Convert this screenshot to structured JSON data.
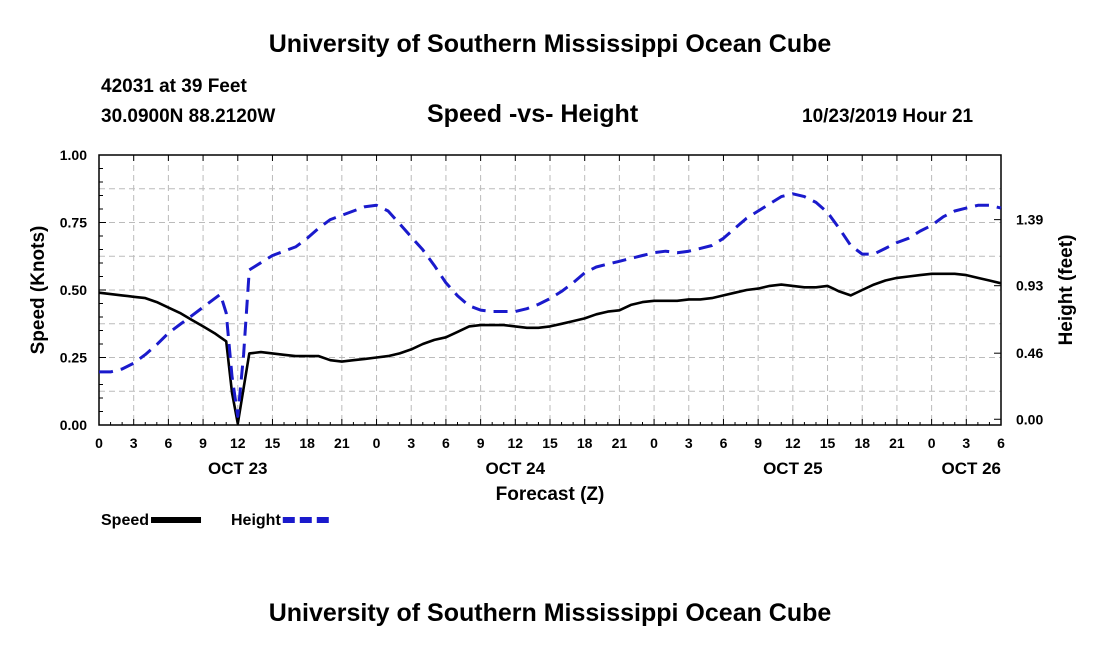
{
  "header": {
    "title": "University of Southern Mississippi Ocean Cube",
    "station": "42031 at 39 Feet",
    "coordinates": "30.0900N 88.2120W",
    "chart_title": "Speed -vs- Height",
    "datetime": "10/23/2019 Hour 21"
  },
  "footer": {
    "title": "University of Southern Mississippi Ocean Cube"
  },
  "colors": {
    "speed": "#000000",
    "height": "#1a1acc",
    "grid": "#bbbbbb"
  },
  "chart_data": {
    "type": "line",
    "xlabel": "Forecast (Z)",
    "ylabel": "Speed (Knots)",
    "y2label": "Height (feet)",
    "x_unit": "hours from Oct 23 00Z",
    "xlim": [
      0,
      78
    ],
    "ylim": [
      0,
      1.0
    ],
    "y2lim": [
      -0.04,
      1.84
    ],
    "x_ticks": [
      0,
      3,
      6,
      9,
      12,
      15,
      18,
      21,
      24,
      27,
      30,
      33,
      36,
      39,
      42,
      45,
      48,
      51,
      54,
      57,
      60,
      63,
      66,
      69,
      72,
      75,
      78
    ],
    "x_tick_labels": [
      "0",
      "3",
      "6",
      "9",
      "12",
      "15",
      "18",
      "21",
      "0",
      "3",
      "6",
      "9",
      "12",
      "15",
      "18",
      "21",
      "0",
      "3",
      "6",
      "9",
      "12",
      "15",
      "18",
      "21",
      "0",
      "3",
      "6"
    ],
    "date_labels": [
      {
        "x": 12,
        "label": "OCT 23"
      },
      {
        "x": 36,
        "label": "OCT 24"
      },
      {
        "x": 60,
        "label": "OCT 25"
      },
      {
        "x": 78,
        "label": "OCT 26"
      }
    ],
    "y_ticks": [
      0.0,
      0.25,
      0.5,
      0.75,
      1.0
    ],
    "y_tick_labels": [
      "0.00",
      "0.25",
      "0.50",
      "0.75",
      "1.00"
    ],
    "y2_ticks": [
      0.0,
      0.46,
      0.93,
      1.39
    ],
    "y2_tick_labels": [
      "0.00",
      "0.46",
      "0.93",
      "1.39"
    ],
    "grid": true,
    "legend": {
      "position": "bottom-left"
    },
    "series": [
      {
        "name": "Speed",
        "axis": "left",
        "style": "solid",
        "x": [
          0,
          1,
          2,
          3,
          4,
          5,
          6,
          7,
          8,
          9,
          10,
          10.5,
          11,
          11.5,
          12,
          13,
          14,
          15,
          16,
          17,
          18,
          19,
          20,
          21,
          22,
          23,
          24,
          25,
          26,
          27,
          28,
          29,
          30,
          31,
          32,
          33,
          34,
          35,
          36,
          37,
          38,
          39,
          40,
          41,
          42,
          43,
          44,
          45,
          46,
          47,
          48,
          49,
          50,
          51,
          52,
          53,
          54,
          55,
          56,
          57,
          58,
          59,
          60,
          61,
          62,
          63,
          63.5,
          64,
          65,
          66,
          67,
          68,
          69,
          70,
          71,
          72,
          73,
          74,
          75,
          76,
          77,
          78
        ],
        "values": [
          0.49,
          0.485,
          0.48,
          0.475,
          0.47,
          0.455,
          0.435,
          0.415,
          0.39,
          0.365,
          0.34,
          0.325,
          0.31,
          0.12,
          0.005,
          0.265,
          0.27,
          0.265,
          0.26,
          0.255,
          0.255,
          0.255,
          0.24,
          0.235,
          0.24,
          0.245,
          0.25,
          0.255,
          0.265,
          0.28,
          0.3,
          0.315,
          0.325,
          0.345,
          0.365,
          0.37,
          0.37,
          0.37,
          0.365,
          0.36,
          0.36,
          0.365,
          0.375,
          0.385,
          0.395,
          0.41,
          0.42,
          0.425,
          0.445,
          0.455,
          0.46,
          0.46,
          0.46,
          0.465,
          0.465,
          0.47,
          0.48,
          0.49,
          0.5,
          0.505,
          0.515,
          0.52,
          0.515,
          0.51,
          0.51,
          0.515,
          0.505,
          0.495,
          0.48,
          0.5,
          0.52,
          0.535,
          0.545,
          0.55,
          0.555,
          0.56,
          0.56,
          0.56,
          0.555,
          0.545,
          0.535,
          0.525
        ]
      },
      {
        "name": "Height",
        "axis": "right",
        "style": "dashed",
        "x": [
          0,
          1,
          2,
          3,
          4,
          5,
          6,
          7,
          8,
          9,
          10,
          10.5,
          11,
          11.5,
          12,
          12.5,
          13,
          14,
          15,
          16,
          17,
          18,
          19,
          20,
          21,
          22,
          23,
          24,
          25,
          26,
          27,
          28,
          29,
          30,
          31,
          32,
          33,
          34,
          35,
          36,
          37,
          38,
          39,
          40,
          41,
          42,
          43,
          44,
          45,
          46,
          47,
          48,
          49,
          50,
          51,
          52,
          53,
          54,
          55,
          56,
          57,
          58,
          59,
          60,
          61,
          62,
          63,
          64,
          65,
          66,
          67,
          68,
          69,
          70,
          71,
          72,
          73,
          74,
          75,
          76,
          77,
          78
        ],
        "values": [
          0.33,
          0.33,
          0.35,
          0.39,
          0.45,
          0.52,
          0.6,
          0.66,
          0.72,
          0.78,
          0.84,
          0.87,
          0.74,
          0.3,
          0.02,
          0.45,
          1.04,
          1.09,
          1.14,
          1.17,
          1.2,
          1.26,
          1.33,
          1.39,
          1.42,
          1.45,
          1.48,
          1.49,
          1.45,
          1.36,
          1.27,
          1.18,
          1.07,
          0.95,
          0.86,
          0.79,
          0.76,
          0.75,
          0.75,
          0.75,
          0.77,
          0.8,
          0.84,
          0.89,
          0.95,
          1.02,
          1.06,
          1.08,
          1.1,
          1.12,
          1.14,
          1.16,
          1.17,
          1.16,
          1.17,
          1.19,
          1.21,
          1.26,
          1.33,
          1.4,
          1.45,
          1.5,
          1.55,
          1.57,
          1.55,
          1.51,
          1.44,
          1.33,
          1.21,
          1.15,
          1.15,
          1.19,
          1.23,
          1.26,
          1.31,
          1.35,
          1.41,
          1.45,
          1.47,
          1.49,
          1.49,
          1.47
        ]
      }
    ]
  }
}
